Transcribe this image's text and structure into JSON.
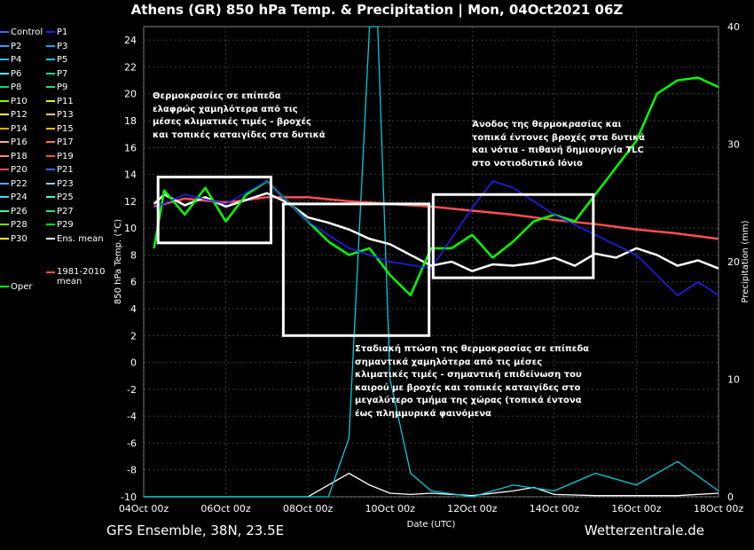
{
  "title": "Athens  (GR)  850 hPa Temp. & Precipitation | Mon, 04Oct2021 06Z",
  "footer_left": "GFS Ensemble, 38N, 23.5E",
  "footer_right": "Wetterzentrale.de",
  "legend": {
    "items": [
      {
        "label": "Control",
        "color": "#4060ff"
      },
      {
        "label": "P1",
        "color": "#2020ff"
      },
      {
        "label": "P2",
        "color": "#3399ff"
      },
      {
        "label": "P3",
        "color": "#00aaff"
      },
      {
        "label": "P4",
        "color": "#33bbff"
      },
      {
        "label": "P5",
        "color": "#00ccdd"
      },
      {
        "label": "P6",
        "color": "#66ddff"
      },
      {
        "label": "P7",
        "color": "#00ddaa"
      },
      {
        "label": "P8",
        "color": "#00dd77"
      },
      {
        "label": "P9",
        "color": "#33dd55"
      },
      {
        "label": "P10",
        "color": "#88ff00"
      },
      {
        "label": "P11",
        "color": "#ddff00"
      },
      {
        "label": "P12",
        "color": "#ffff66"
      },
      {
        "label": "P13",
        "color": "#ffcc66"
      },
      {
        "label": "P14",
        "color": "#ffaa00"
      },
      {
        "label": "P15",
        "color": "#ffbb22"
      },
      {
        "label": "P16",
        "color": "#ffaa88"
      },
      {
        "label": "P17",
        "color": "#ff7733"
      },
      {
        "label": "P18",
        "color": "#ff8866"
      },
      {
        "label": "P19",
        "color": "#ff5522"
      },
      {
        "label": "P20",
        "color": "#ff4466"
      },
      {
        "label": "P21",
        "color": "#3366ff"
      },
      {
        "label": "P22",
        "color": "#55aaff"
      },
      {
        "label": "P23",
        "color": "#88ccff"
      },
      {
        "label": "P24",
        "color": "#33ddff"
      },
      {
        "label": "P25",
        "color": "#33ffcc"
      },
      {
        "label": "P26",
        "color": "#33ff99"
      },
      {
        "label": "P27",
        "color": "#22ee66"
      },
      {
        "label": "P28",
        "color": "#66ff33"
      },
      {
        "label": "P29",
        "color": "#00ff00"
      },
      {
        "label": "P30",
        "color": "#ffff33"
      },
      {
        "label": "Ens. mean",
        "color": "#ffffff"
      },
      {
        "label": "Oper",
        "color": "#00ff00"
      },
      {
        "label": "1981-2010 mean",
        "color": "#ff5555"
      }
    ]
  },
  "annotations": {
    "a1": [
      "Θερμοκρασίες σε επίπεδα",
      "ελαφρώς χαμηλότερα από τις",
      "μέσες κλιματικές τιμές - βροχές",
      "και τοπικές καταιγίδες στα δυτικά"
    ],
    "a2": [
      "Άνοδος της θερμοκρασίας και",
      "τοπικά έντονες βροχές στα δυτικά",
      "και νότια - πιθανή δημιουργία TLC",
      "στο νοτιοδυτικό Ιόνιο"
    ],
    "a3": [
      "Σταδιακή πτώση της θερμοκρασίας σε επίπεδα",
      "σημαντικά χαμηλότερα από τις μέσες",
      "κλιματικές τιμές - σημαντική επιδείνωση του",
      "καιρού με βροχές και τοπικές καταιγίδες στο",
      "μεγαλύτερο τμήμα της χώρας (τοπικά έντονα",
      "έως πλημμυρικά φαινόμενα"
    ]
  },
  "chart_data": {
    "type": "line",
    "xlabel": "Date (UTC)",
    "ylabel": "850 hPa Temp. (°C)",
    "y2label": "Precipitation (mm)",
    "x_ticks": [
      "04Oct 00z",
      "06Oct 00z",
      "08Oct 00z",
      "10Oct 00z",
      "12Oct 00z",
      "14Oct 00z",
      "16Oct 00z",
      "18Oct 00z"
    ],
    "x_range_days": [
      0,
      14
    ],
    "ylim": [
      -10,
      25
    ],
    "y_ticks": [
      -10,
      -8,
      -6,
      -4,
      -2,
      0,
      2,
      4,
      6,
      8,
      10,
      12,
      14,
      16,
      18,
      20,
      22,
      24
    ],
    "y2lim": [
      0,
      40
    ],
    "y2_ticks": [
      0,
      10,
      20,
      30,
      40
    ],
    "grid": true,
    "series": [
      {
        "name": "1981-2010 mean",
        "color": "#ff5050",
        "x": [
          0.25,
          1,
          2,
          3,
          4,
          5,
          6,
          7,
          8,
          9,
          10,
          11,
          12,
          13,
          14
        ],
        "y": [
          11.6,
          12.2,
          11.9,
          12.3,
          12.3,
          12.0,
          11.8,
          11.6,
          11.3,
          11.0,
          10.6,
          10.3,
          9.9,
          9.6,
          9.2
        ]
      },
      {
        "name": "Ens. mean",
        "color": "#ffffff",
        "x": [
          0.25,
          0.5,
          1,
          1.5,
          2,
          2.5,
          3,
          3.5,
          4,
          4.5,
          5,
          5.5,
          6,
          6.5,
          7,
          7.5,
          8,
          8.5,
          9,
          9.5,
          10,
          10.5,
          11,
          11.5,
          12,
          12.5,
          13,
          13.5,
          14
        ],
        "y": [
          11.8,
          12.5,
          11.7,
          12.3,
          11.6,
          12.1,
          12.6,
          11.9,
          10.8,
          10.4,
          9.9,
          9.2,
          8.8,
          8.0,
          7.2,
          7.5,
          6.8,
          7.3,
          7.2,
          7.4,
          7.8,
          7.2,
          8.1,
          7.8,
          8.5,
          8.0,
          7.2,
          7.6,
          7.0
        ]
      },
      {
        "name": "Oper",
        "color": "#00ff00",
        "x": [
          0.25,
          0.5,
          1,
          1.5,
          2,
          2.5,
          3,
          3.5,
          4,
          4.5,
          5,
          5.5,
          6,
          6.5,
          7,
          7.5,
          8,
          8.5,
          9,
          9.5,
          10,
          10.5,
          11,
          11.5,
          12,
          12.5,
          13,
          13.5,
          14
        ],
        "y": [
          8.5,
          12.8,
          11.0,
          13.0,
          10.5,
          12.5,
          13.5,
          12.0,
          10.5,
          9.0,
          8.0,
          8.5,
          6.5,
          5.0,
          8.5,
          8.5,
          9.5,
          7.8,
          9.0,
          10.5,
          11.0,
          10.5,
          12.5,
          14.5,
          16.5,
          20.0,
          21.0,
          21.2,
          20.5
        ]
      },
      {
        "name": "P1",
        "color": "#2020ff",
        "x": [
          0.25,
          1,
          2,
          3,
          4,
          5,
          6,
          7,
          8,
          8.5,
          9,
          10,
          11,
          12,
          12.5,
          13,
          13.5,
          14
        ],
        "y": [
          11.5,
          12.5,
          11.8,
          13.5,
          10.5,
          8.5,
          7.5,
          7.0,
          11.5,
          13.5,
          13.0,
          11.0,
          9.5,
          8.0,
          6.5,
          5.0,
          6.0,
          5.0
        ]
      }
    ],
    "precip_series": [
      {
        "name": "Ens. mean",
        "color": "#ffffff",
        "x": [
          0,
          4,
          5,
          5.5,
          6,
          6.5,
          7,
          8,
          9,
          9.5,
          10,
          11,
          12,
          13,
          14
        ],
        "y": [
          0,
          0,
          2,
          1,
          0.3,
          0.2,
          0.3,
          0.1,
          0.5,
          0.8,
          0.2,
          0.1,
          0.1,
          0.1,
          0.3
        ]
      },
      {
        "name": "P5",
        "color": "#00ccdd",
        "x": [
          0,
          4.5,
          5,
          5.5,
          5.7,
          6,
          6.5,
          7,
          8,
          9,
          10,
          11,
          12,
          13,
          14
        ],
        "y": [
          0,
          0,
          5,
          40,
          40,
          10,
          2,
          0.5,
          0,
          1,
          0.5,
          2,
          1,
          3,
          0.5
        ]
      }
    ]
  }
}
